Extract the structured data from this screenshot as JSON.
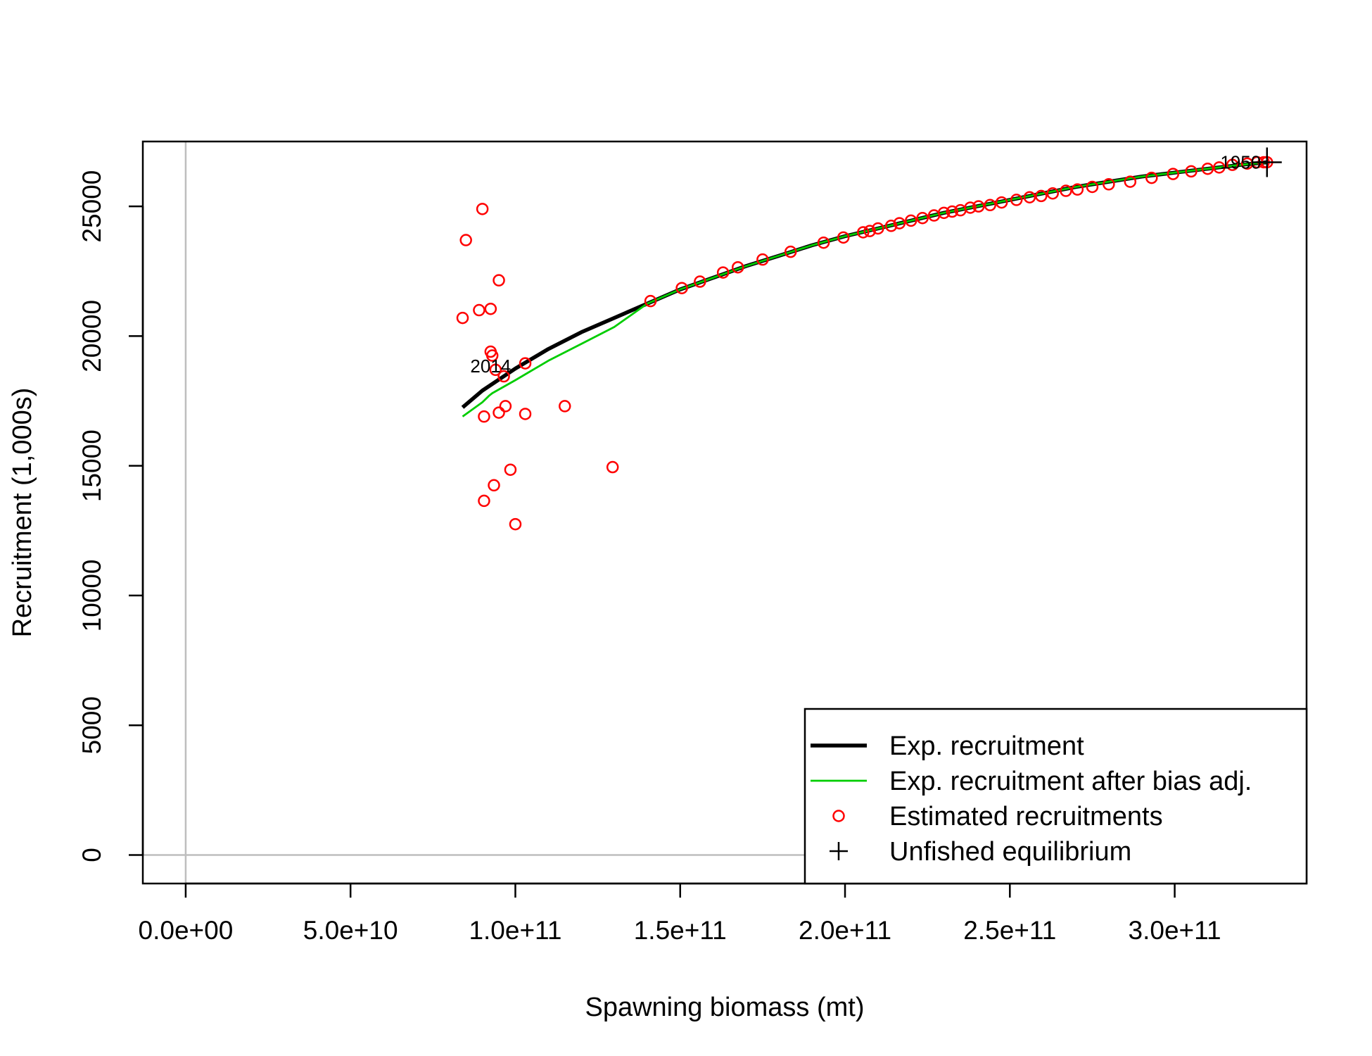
{
  "chart_data": {
    "type": "scatter",
    "title": "",
    "xlabel": "Spawning biomass (mt)",
    "ylabel": "Recruitment (1,000s)",
    "xlim": [
      -13000000000.0,
      340000000000.0
    ],
    "ylim": [
      -1100,
      27500
    ],
    "x_ticks": [
      {
        "value": 0,
        "label": "0.0e+00"
      },
      {
        "value": 50000000000.0,
        "label": "5.0e+10"
      },
      {
        "value": 100000000000.0,
        "label": "1.0e+11"
      },
      {
        "value": 150000000000.0,
        "label": "1.5e+11"
      },
      {
        "value": 200000000000.0,
        "label": "2.0e+11"
      },
      {
        "value": 250000000000.0,
        "label": "2.5e+11"
      },
      {
        "value": 300000000000.0,
        "label": "3.0e+11"
      }
    ],
    "y_ticks": [
      {
        "value": 0,
        "label": "0"
      },
      {
        "value": 5000,
        "label": "5000"
      },
      {
        "value": 10000,
        "label": "10000"
      },
      {
        "value": 15000,
        "label": "15000"
      },
      {
        "value": 20000,
        "label": "20000"
      },
      {
        "value": 25000,
        "label": "25000"
      }
    ],
    "reference_lines": {
      "x": 0,
      "y": 0,
      "color": "#bebebe"
    },
    "legend_position": "bottom-right",
    "series": [
      {
        "name": "Exp. recruitment",
        "kind": "line",
        "color": "#000000",
        "points": [
          [
            84000000000.0,
            17250
          ],
          [
            90000000000.0,
            17900
          ],
          [
            100000000000.0,
            18750
          ],
          [
            110000000000.0,
            19500
          ],
          [
            120000000000.0,
            20150
          ],
          [
            130000000000.0,
            20700
          ],
          [
            140000000000.0,
            21250
          ],
          [
            150000000000.0,
            21800
          ],
          [
            160000000000.0,
            22250
          ],
          [
            170000000000.0,
            22700
          ],
          [
            180000000000.0,
            23100
          ],
          [
            190000000000.0,
            23500
          ],
          [
            200000000000.0,
            23850
          ],
          [
            210000000000.0,
            24150
          ],
          [
            220000000000.0,
            24450
          ],
          [
            230000000000.0,
            24750
          ],
          [
            240000000000.0,
            25000
          ],
          [
            250000000000.0,
            25250
          ],
          [
            260000000000.0,
            25500
          ],
          [
            270000000000.0,
            25750
          ],
          [
            280000000000.0,
            25950
          ],
          [
            290000000000.0,
            26150
          ],
          [
            300000000000.0,
            26300
          ],
          [
            310000000000.0,
            26450
          ],
          [
            320000000000.0,
            26600
          ],
          [
            328000000000.0,
            26700
          ]
        ]
      },
      {
        "name": "Exp. recruitment after bias adj.",
        "kind": "line",
        "color": "#00cd00",
        "points": [
          [
            84000000000.0,
            16900
          ],
          [
            90000000000.0,
            17450
          ],
          [
            92000000000.0,
            17700
          ],
          [
            93000000000.0,
            17800
          ],
          [
            100000000000.0,
            18300
          ],
          [
            110000000000.0,
            19050
          ],
          [
            120000000000.0,
            19700
          ],
          [
            130000000000.0,
            20350
          ],
          [
            140000000000.0,
            21250
          ],
          [
            150000000000.0,
            21800
          ],
          [
            160000000000.0,
            22250
          ],
          [
            170000000000.0,
            22700
          ],
          [
            180000000000.0,
            23100
          ],
          [
            190000000000.0,
            23500
          ],
          [
            200000000000.0,
            23850
          ],
          [
            210000000000.0,
            24150
          ],
          [
            220000000000.0,
            24450
          ],
          [
            230000000000.0,
            24750
          ],
          [
            240000000000.0,
            25000
          ],
          [
            250000000000.0,
            25250
          ],
          [
            260000000000.0,
            25500
          ],
          [
            270000000000.0,
            25750
          ],
          [
            280000000000.0,
            25950
          ],
          [
            290000000000.0,
            26150
          ],
          [
            300000000000.0,
            26300
          ],
          [
            310000000000.0,
            26450
          ],
          [
            320000000000.0,
            26600
          ],
          [
            328000000000.0,
            26700
          ]
        ]
      },
      {
        "name": "Estimated recruitments",
        "kind": "points",
        "color": "#ff0000",
        "points": [
          [
            84000000000.0,
            20700
          ],
          [
            85000000000.0,
            23700
          ],
          [
            89000000000.0,
            21000
          ],
          [
            90000000000.0,
            24900
          ],
          [
            90500000000.0,
            16900
          ],
          [
            90500000000.0,
            13650
          ],
          [
            92500000000.0,
            21050
          ],
          [
            92500000000.0,
            19400
          ],
          [
            93000000000.0,
            19250
          ],
          [
            93500000000.0,
            14250
          ],
          [
            94000000000.0,
            18700
          ],
          [
            95000000000.0,
            22150
          ],
          [
            95000000000.0,
            17050
          ],
          [
            96500000000.0,
            18450
          ],
          [
            97000000000.0,
            17300
          ],
          [
            98500000000.0,
            14850
          ],
          [
            100000000000.0,
            12750
          ],
          [
            103000000000.0,
            18950
          ],
          [
            103000000000.0,
            17000
          ],
          [
            115000000000.0,
            17300
          ],
          [
            129500000000.0,
            14950
          ],
          [
            141000000000.0,
            21350
          ],
          [
            150500000000.0,
            21850
          ],
          [
            156000000000.0,
            22100
          ],
          [
            163000000000.0,
            22450
          ],
          [
            167500000000.0,
            22650
          ],
          [
            175000000000.0,
            22950
          ],
          [
            183500000000.0,
            23250
          ],
          [
            193500000000.0,
            23600
          ],
          [
            199500000000.0,
            23800
          ],
          [
            205500000000.0,
            24000
          ],
          [
            207500000000.0,
            24050
          ],
          [
            210000000000.0,
            24150
          ],
          [
            214000000000.0,
            24250
          ],
          [
            216500000000.0,
            24350
          ],
          [
            220000000000.0,
            24450
          ],
          [
            223500000000.0,
            24550
          ],
          [
            227000000000.0,
            24650
          ],
          [
            230000000000.0,
            24750
          ],
          [
            232500000000.0,
            24800
          ],
          [
            235000000000.0,
            24850
          ],
          [
            238000000000.0,
            24950
          ],
          [
            240500000000.0,
            25000
          ],
          [
            244000000000.0,
            25050
          ],
          [
            247500000000.0,
            25150
          ],
          [
            252000000000.0,
            25250
          ],
          [
            256000000000.0,
            25350
          ],
          [
            259500000000.0,
            25400
          ],
          [
            263000000000.0,
            25500
          ],
          [
            267000000000.0,
            25600
          ],
          [
            270500000000.0,
            25650
          ],
          [
            275000000000.0,
            25750
          ],
          [
            280000000000.0,
            25850
          ],
          [
            286500000000.0,
            25950
          ],
          [
            293000000000.0,
            26100
          ],
          [
            299500000000.0,
            26250
          ],
          [
            305000000000.0,
            26350
          ],
          [
            310000000000.0,
            26450
          ],
          [
            313500000000.0,
            26500
          ],
          [
            317500000000.0,
            26600
          ],
          [
            322000000000.0,
            26650
          ],
          [
            325000000000.0,
            26700
          ],
          [
            327000000000.0,
            26700
          ],
          [
            328000000000.0,
            26700
          ]
        ]
      },
      {
        "name": "Unfished equilibrium",
        "kind": "marker",
        "color": "#000000",
        "points": [
          [
            328000000000.0,
            26700
          ]
        ]
      }
    ],
    "annotations": [
      {
        "text": "2014",
        "x": 92500000000.0,
        "y": 18850
      },
      {
        "text": "1950",
        "x": 320000000000.0,
        "y": 26700
      }
    ]
  }
}
